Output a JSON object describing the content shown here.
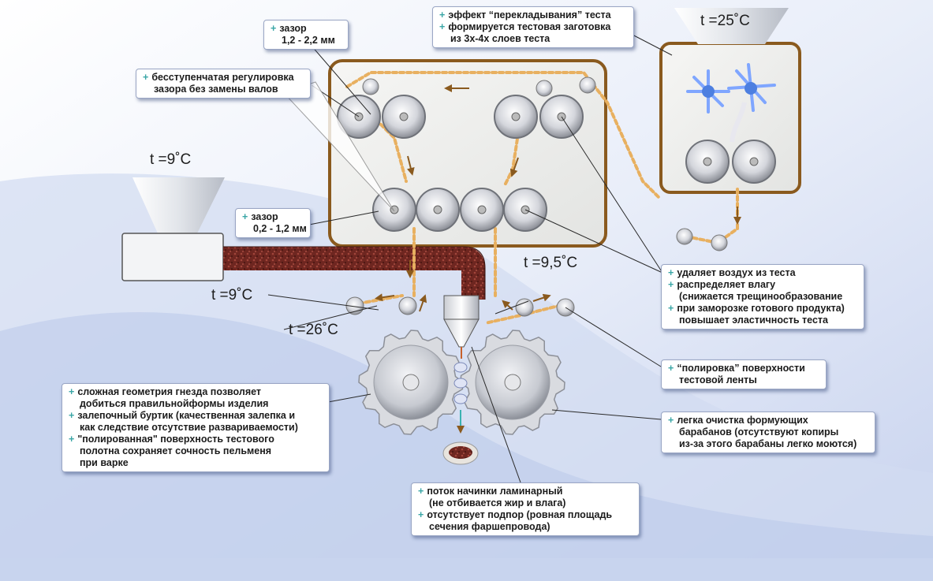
{
  "callouts": {
    "gap_top": {
      "title": "зазор",
      "value": "1,2 - 2,2 мм"
    },
    "stepless": {
      "line1": "бесступенчатая регулировка",
      "line2": "зазора без замены валов"
    },
    "layering": {
      "line1": "эффект “перекладывания” теста",
      "line2": "формируется тестовая заготовка",
      "line3": "из 3х-4х слоев теста"
    },
    "gap_bottom": {
      "title": "зазор",
      "value": "0,2 - 1,2 мм"
    },
    "air": {
      "line1": "удаляет воздух из теста",
      "line2": "распределяет влагу",
      "line3": "(снижается трещинообразование",
      "line4": "при заморозке готового продукта)",
      "line5": "повышает эластичность теста"
    },
    "polish": {
      "line1": "“полировка” поверхности",
      "line2": "тестовой ленты"
    },
    "geometry": {
      "line1": "сложная геометрия гнезда позволяет",
      "line2": "добиться правильнойформы изделия",
      "line3": "залепочный буртик (качественная залепка и",
      "line4": "как следствие отсутствие развариваемости)",
      "line5": "\"полированная\" поверхность тестового",
      "line6": "полотна сохраняет сочность пельменя",
      "line7": "при варке"
    },
    "cleaning": {
      "line1": "легка очистка формующих",
      "line2": "барабанов (отсутствуют копиры",
      "line3": "из-за этого барабаны легко моются)"
    },
    "flow": {
      "line1": "поток начинки ламинарный",
      "line2": "(не отбивается жир и влага)",
      "line3": "отсутствует подпор (ровная площадь",
      "line4": "сечения  фаршепровода)"
    }
  },
  "temperatures": {
    "hopper_right": "t =25˚С",
    "hopper_left": "t =9˚С",
    "pipe": "t =9˚С",
    "nozzle": "t =9,5˚С",
    "rollers": "t =26˚С"
  },
  "colors": {
    "frame": "#8a5a1e",
    "dough_path": "#e8b060",
    "arrow": "#8a5a1e",
    "filling": "#7a2a24",
    "accent": "#3aa6a6",
    "background_band": "#c8d4ee"
  }
}
